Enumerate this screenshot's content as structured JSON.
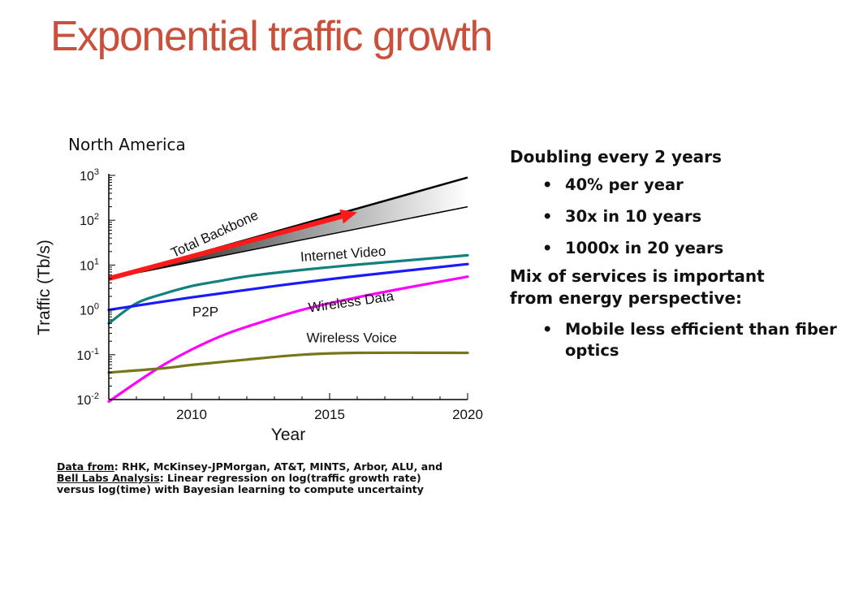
{
  "slide": {
    "title": "Exponential traffic growth"
  },
  "chart_data": {
    "type": "line",
    "subtitle": "North America",
    "xlabel": "Year",
    "ylabel": "Traffic (Tb/s)",
    "xlim": [
      2007,
      2020
    ],
    "ylim": [
      0.01,
      1000
    ],
    "y_scale": "log",
    "x_ticks": [
      2010,
      2015,
      2020
    ],
    "y_ticks": [
      {
        "value": 0.01,
        "base": "10",
        "exp": "-2"
      },
      {
        "value": 0.1,
        "base": "10",
        "exp": "-1"
      },
      {
        "value": 1,
        "base": "10",
        "exp": "0"
      },
      {
        "value": 10,
        "base": "10",
        "exp": "1"
      },
      {
        "value": 100,
        "base": "10",
        "exp": "2"
      },
      {
        "value": 1000,
        "base": "10",
        "exp": "3"
      }
    ],
    "grid": false,
    "band": {
      "name": "Total Backbone",
      "upper": {
        "x": [
          2007,
          2020
        ],
        "y": [
          5,
          900
        ]
      },
      "lower": {
        "x": [
          2007,
          2020
        ],
        "y": [
          5,
          200
        ]
      }
    },
    "trend_arrow": {
      "x": [
        2007,
        2016
      ],
      "y": [
        5,
        150
      ],
      "color": "#ff1a1a"
    },
    "series": [
      {
        "name": "Internet Video",
        "color": "#138080",
        "x": [
          2007,
          2008,
          2009,
          2010,
          2011,
          2012,
          2014,
          2016,
          2018,
          2020
        ],
        "y": [
          0.5,
          1.4,
          2.3,
          3.4,
          4.4,
          5.6,
          7.8,
          10.2,
          13,
          16.5
        ]
      },
      {
        "name": "P2P",
        "color": "#1a1aff",
        "x": [
          2007,
          2010,
          2013,
          2016,
          2020
        ],
        "y": [
          1.0,
          1.9,
          3.4,
          5.7,
          10.5
        ]
      },
      {
        "name": "Wireless Data",
        "color": "#ff00ff",
        "x": [
          2007,
          2008,
          2009,
          2010,
          2011,
          2012,
          2014,
          2016,
          2018,
          2020
        ],
        "y": [
          0.009,
          0.024,
          0.06,
          0.13,
          0.25,
          0.42,
          1.0,
          1.9,
          3.3,
          5.5
        ]
      },
      {
        "name": "Wireless Voice",
        "color": "#77771a",
        "x": [
          2007,
          2009,
          2010,
          2012,
          2014,
          2016,
          2020
        ],
        "y": [
          0.04,
          0.05,
          0.059,
          0.078,
          0.1,
          0.11,
          0.11
        ]
      }
    ]
  },
  "source": {
    "label1": "Data from",
    "text1": ": RHK, McKinsey-JPMorgan, AT&T, MINTS, Arbor, ALU, and",
    "label2": "Bell Labs Analysis",
    "text2": ": Linear regression on log(traffic growth rate)",
    "text3": "versus log(time) with Bayesian learning to compute uncertainty"
  },
  "bullets": {
    "heading": "Doubling every 2 years",
    "items": [
      "40% per year",
      "30x in 10 years",
      "1000x in 20 years"
    ],
    "mix_line1": "Mix of services is important",
    "mix_line2": "from energy perspective:",
    "items2": [
      "Mobile less efficient than fiber optics"
    ]
  }
}
